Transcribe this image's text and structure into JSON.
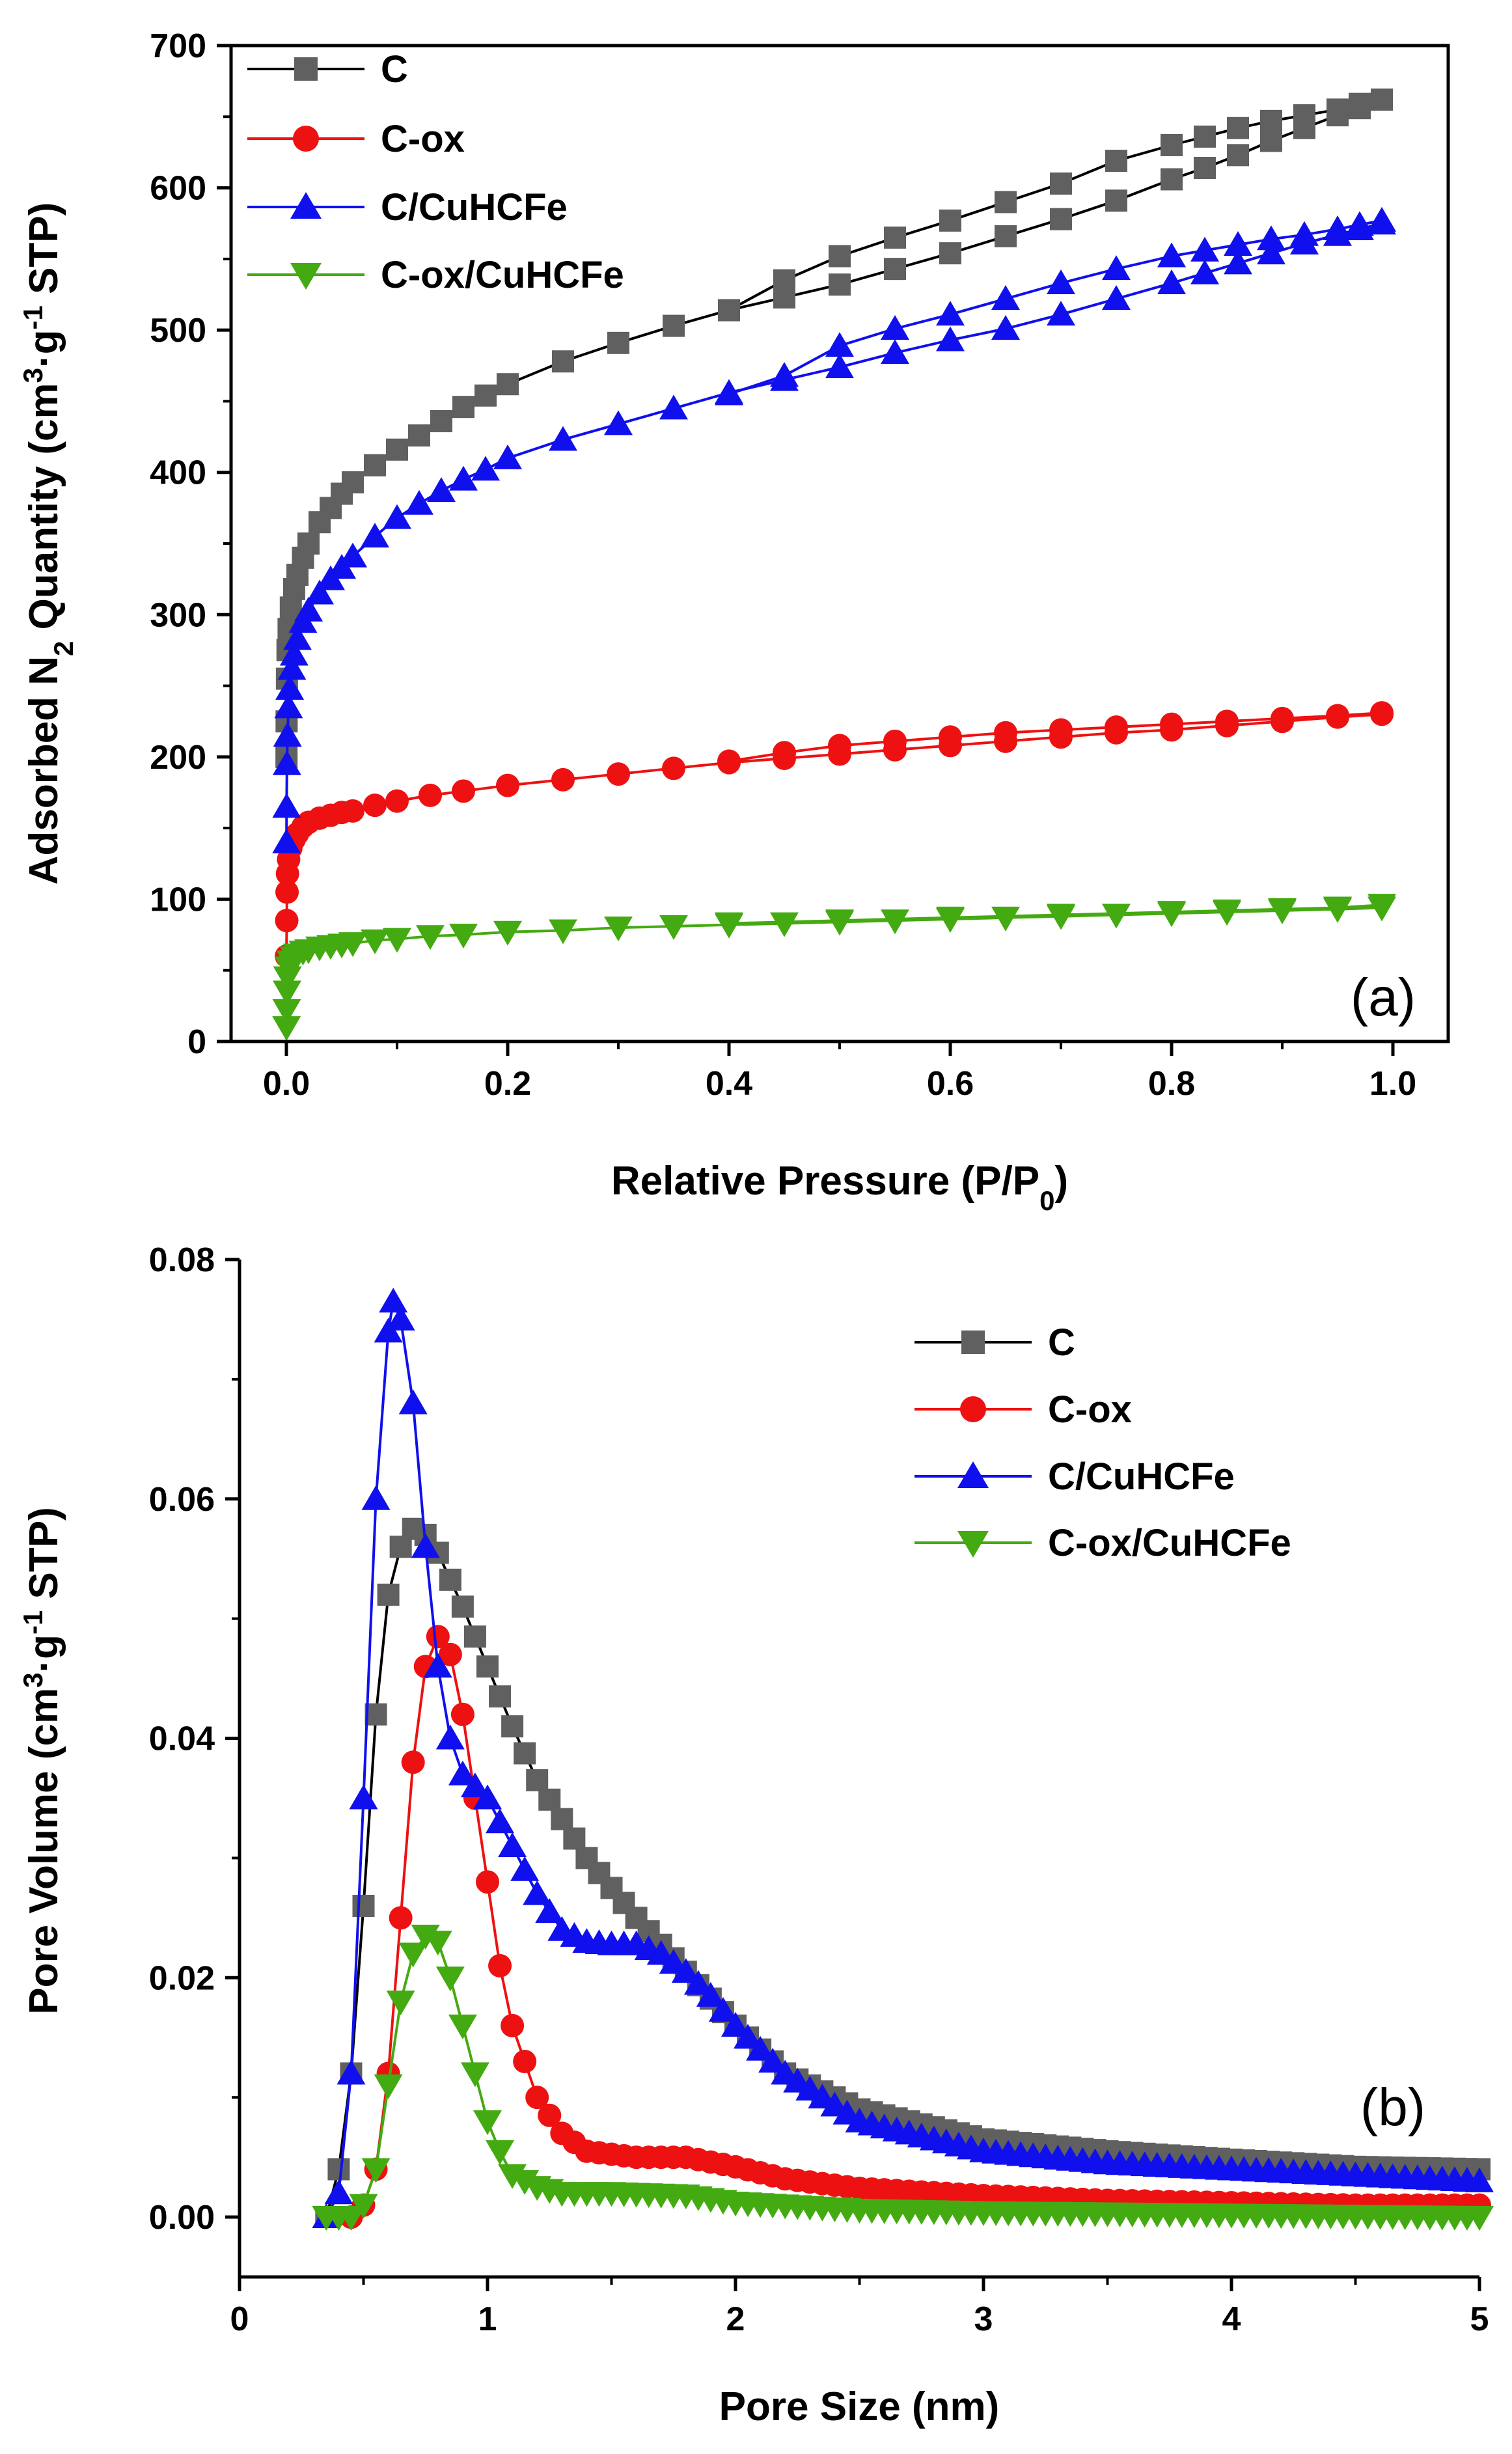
{
  "colors": {
    "C": "#606060",
    "C-ox": "#ee1111",
    "C/CuHCFe": "#1010ee",
    "C-ox/CuHCFe": "#44aa11"
  },
  "chart_data": [
    {
      "type": "line",
      "panel_label": "(a)",
      "title": "",
      "xlabel_main": "Relative Pressure (P/P",
      "xlabel_sub": "0",
      "xlabel_end": ")",
      "ylabel_a": "Adsorbed N",
      "ylabel_b": "2",
      "ylabel_c": " Quantity (cm",
      "ylabel_d": "3",
      "ylabel_e": "·g",
      "ylabel_f": "-1",
      "ylabel_g": " STP)",
      "xlim": [
        -0.05,
        1.05
      ],
      "ylim": [
        0,
        700
      ],
      "xticks": [
        0.0,
        0.2,
        0.4,
        0.6,
        0.8,
        1.0
      ],
      "xtick_labels": [
        "0.0",
        "0.2",
        "0.4",
        "0.6",
        "0.8",
        "1.0"
      ],
      "yticks": [
        0,
        100,
        200,
        300,
        400,
        500,
        600,
        700
      ],
      "ytick_labels": [
        "0",
        "100",
        "200",
        "300",
        "400",
        "500",
        "600",
        "700"
      ],
      "legend_position": "top-left",
      "series": [
        {
          "name": "C",
          "marker": "square",
          "adsorption": {
            "x": [
              0.0001,
              0.0002,
              0.0005,
              0.001,
              0.002,
              0.004,
              0.007,
              0.01,
              0.015,
              0.02,
              0.03,
              0.04,
              0.05,
              0.06,
              0.08,
              0.1,
              0.12,
              0.14,
              0.16,
              0.18,
              0.2,
              0.25,
              0.3,
              0.35,
              0.4,
              0.45,
              0.5,
              0.55,
              0.6,
              0.65,
              0.7,
              0.75,
              0.8,
              0.83,
              0.86,
              0.89,
              0.92,
              0.95,
              0.97,
              0.99
            ],
            "y": [
              200,
              225,
              255,
              275,
              290,
              305,
              318,
              328,
              340,
              350,
              365,
              375,
              385,
              393,
              405,
              416,
              426,
              436,
              446,
              454,
              462,
              478,
              491,
              503,
              514,
              523,
              532,
              543,
              554,
              566,
              578,
              591,
              606,
              614,
              623,
              633,
              642,
              651,
              656,
              662
            ]
          },
          "desorption": {
            "x": [
              0.99,
              0.97,
              0.95,
              0.92,
              0.89,
              0.86,
              0.83,
              0.8,
              0.75,
              0.7,
              0.65,
              0.6,
              0.55,
              0.5,
              0.45,
              0.4
            ],
            "y": [
              662,
              659,
              655,
              651,
              647,
              642,
              636,
              630,
              619,
              603,
              590,
              577,
              565,
              552,
              535,
              514
            ]
          }
        },
        {
          "name": "C-ox",
          "marker": "circle",
          "adsorption": {
            "x": [
              0.0001,
              0.0003,
              0.0006,
              0.001,
              0.002,
              0.004,
              0.007,
              0.01,
              0.015,
              0.02,
              0.03,
              0.04,
              0.05,
              0.06,
              0.08,
              0.1,
              0.13,
              0.16,
              0.2,
              0.25,
              0.3,
              0.35,
              0.4,
              0.45,
              0.5,
              0.55,
              0.6,
              0.65,
              0.7,
              0.75,
              0.8,
              0.85,
              0.9,
              0.95,
              0.99
            ],
            "y": [
              60,
              85,
              105,
              118,
              128,
              136,
              142,
              146,
              151,
              154,
              157,
              159,
              161,
              162,
              166,
              169,
              173,
              176,
              180,
              184,
              188,
              192,
              196,
              199,
              202,
              205,
              208,
              211,
              214,
              217,
              219,
              222,
              225,
              228,
              230
            ]
          },
          "desorption": {
            "x": [
              0.99,
              0.95,
              0.9,
              0.85,
              0.8,
              0.75,
              0.7,
              0.65,
              0.6,
              0.55,
              0.5,
              0.45,
              0.4
            ],
            "y": [
              231,
              229,
              227,
              225,
              223,
              221,
              219,
              217,
              214,
              211,
              208,
              203,
              197
            ]
          }
        },
        {
          "name": "C/CuHCFe",
          "marker": "triangle-up",
          "adsorption": {
            "x": [
              0.0001,
              0.0002,
              0.0005,
              0.001,
              0.002,
              0.003,
              0.005,
              0.007,
              0.01,
              0.015,
              0.02,
              0.03,
              0.04,
              0.05,
              0.06,
              0.08,
              0.1,
              0.12,
              0.14,
              0.16,
              0.18,
              0.2,
              0.25,
              0.3,
              0.35,
              0.4,
              0.45,
              0.5,
              0.55,
              0.6,
              0.65,
              0.7,
              0.75,
              0.8,
              0.83,
              0.86,
              0.89,
              0.92,
              0.95,
              0.97,
              0.99
            ],
            "y": [
              140,
              165,
              195,
              215,
              235,
              248,
              262,
              272,
              283,
              295,
              303,
              315,
              325,
              333,
              341,
              355,
              368,
              378,
              387,
              395,
              402,
              410,
              423,
              434,
              445,
              456,
              465,
              474,
              484,
              493,
              501,
              511,
              522,
              533,
              540,
              547,
              554,
              561,
              567,
              571,
              575
            ]
          },
          "desorption": {
            "x": [
              0.99,
              0.97,
              0.95,
              0.92,
              0.89,
              0.86,
              0.83,
              0.8,
              0.75,
              0.7,
              0.65,
              0.6,
              0.55,
              0.5,
              0.45,
              0.4
            ],
            "y": [
              577,
              574,
              571,
              567,
              564,
              560,
              556,
              552,
              543,
              533,
              522,
              511,
              501,
              489,
              468,
              455
            ]
          }
        },
        {
          "name": "C-ox/CuHCFe",
          "marker": "triangle-down",
          "adsorption": {
            "x": [
              0.0001,
              0.0003,
              0.0006,
              0.001,
              0.002,
              0.004,
              0.007,
              0.01,
              0.015,
              0.02,
              0.03,
              0.04,
              0.05,
              0.06,
              0.08,
              0.1,
              0.13,
              0.16,
              0.2,
              0.25,
              0.3,
              0.35,
              0.4,
              0.45,
              0.5,
              0.55,
              0.6,
              0.65,
              0.7,
              0.75,
              0.8,
              0.85,
              0.9,
              0.95,
              0.99
            ],
            "y": [
              10,
              22,
              35,
              45,
              52,
              56,
              59,
              61,
              63,
              64,
              66,
              67,
              68,
              69,
              71,
              72,
              74,
              75,
              77,
              78,
              80,
              81,
              82,
              83,
              84,
              85,
              86,
              87,
              88,
              89,
              90,
              91,
              92,
              93,
              94
            ]
          },
          "desorption": {
            "x": [
              0.99,
              0.95,
              0.9,
              0.85,
              0.8,
              0.7,
              0.6,
              0.5,
              0.4
            ],
            "y": [
              96,
              94,
              93,
              92,
              91,
              89,
              87,
              85,
              83
            ]
          }
        }
      ]
    },
    {
      "type": "line",
      "panel_label": "(b)",
      "title": "",
      "xlabel": "Pore Size (nm)",
      "ylabel_a": "Pore Volume (cm",
      "ylabel_b": "3",
      "ylabel_c": "·g",
      "ylabel_d": "-1",
      "ylabel_e": " STP)",
      "xlim": [
        0,
        5
      ],
      "ylim": [
        -0.005,
        0.08
      ],
      "xticks": [
        0,
        1,
        2,
        3,
        4,
        5
      ],
      "xtick_labels": [
        "0",
        "1",
        "2",
        "3",
        "4",
        "5"
      ],
      "yticks": [
        0.0,
        0.02,
        0.04,
        0.06,
        0.08
      ],
      "ytick_labels": [
        "0.00",
        "0.02",
        "0.04",
        "0.06",
        "0.08"
      ],
      "legend_position": "top-right",
      "series": [
        {
          "name": "C",
          "marker": "square",
          "x": [
            0.35,
            0.4,
            0.45,
            0.5,
            0.55,
            0.6,
            0.65,
            0.7,
            0.75,
            0.8,
            0.9,
            1.0,
            1.1,
            1.2,
            1.4,
            1.6,
            1.8,
            2.0,
            2.2,
            2.5,
            3.0,
            3.5,
            4.0,
            4.5,
            5.0
          ],
          "y": [
            0.0,
            0.004,
            0.012,
            0.026,
            0.042,
            0.052,
            0.056,
            0.0575,
            0.057,
            0.0555,
            0.051,
            0.046,
            0.041,
            0.0365,
            0.03,
            0.025,
            0.0205,
            0.016,
            0.012,
            0.009,
            0.0065,
            0.0055,
            0.0048,
            0.0042,
            0.004
          ]
        },
        {
          "name": "C-ox",
          "marker": "circle",
          "x": [
            0.45,
            0.5,
            0.55,
            0.6,
            0.65,
            0.7,
            0.75,
            0.8,
            0.85,
            0.9,
            0.95,
            1.0,
            1.05,
            1.1,
            1.2,
            1.3,
            1.4,
            1.6,
            1.8,
            2.0,
            2.2,
            2.5,
            3.0,
            3.5,
            4.0,
            4.5,
            5.0
          ],
          "y": [
            0.0,
            0.001,
            0.004,
            0.012,
            0.025,
            0.038,
            0.046,
            0.0485,
            0.047,
            0.042,
            0.035,
            0.028,
            0.021,
            0.016,
            0.01,
            0.007,
            0.0055,
            0.005,
            0.005,
            0.0042,
            0.0032,
            0.0024,
            0.0018,
            0.0014,
            0.0012,
            0.001,
            0.001
          ]
        },
        {
          "name": "C/CuHCFe",
          "marker": "triangle-up",
          "x": [
            0.35,
            0.4,
            0.45,
            0.5,
            0.55,
            0.6,
            0.62,
            0.65,
            0.7,
            0.75,
            0.8,
            0.85,
            0.9,
            1.0,
            1.1,
            1.2,
            1.3,
            1.4,
            1.5,
            1.6,
            1.7,
            1.8,
            1.9,
            2.0,
            2.2,
            2.5,
            3.0,
            3.5,
            4.0,
            4.5,
            5.0
          ],
          "y": [
            0.0,
            0.002,
            0.012,
            0.035,
            0.06,
            0.074,
            0.0765,
            0.075,
            0.068,
            0.056,
            0.046,
            0.04,
            0.037,
            0.035,
            0.031,
            0.027,
            0.024,
            0.023,
            0.0228,
            0.0228,
            0.022,
            0.0205,
            0.0185,
            0.016,
            0.012,
            0.008,
            0.0055,
            0.0045,
            0.004,
            0.0035,
            0.003
          ]
        },
        {
          "name": "C-ox/CuHCFe",
          "marker": "triangle-down",
          "x": [
            0.35,
            0.45,
            0.5,
            0.55,
            0.6,
            0.65,
            0.7,
            0.75,
            0.8,
            0.85,
            0.9,
            0.95,
            1.0,
            1.05,
            1.1,
            1.2,
            1.3,
            1.5,
            1.8,
            2.0,
            2.5,
            3.0,
            4.0,
            5.0
          ],
          "y": [
            0.0,
            0.0,
            0.001,
            0.004,
            0.011,
            0.018,
            0.022,
            0.0235,
            0.023,
            0.02,
            0.016,
            0.012,
            0.008,
            0.0055,
            0.0035,
            0.0025,
            0.002,
            0.002,
            0.0018,
            0.0012,
            0.0006,
            0.0004,
            0.0002,
            0.0
          ]
        }
      ]
    }
  ]
}
